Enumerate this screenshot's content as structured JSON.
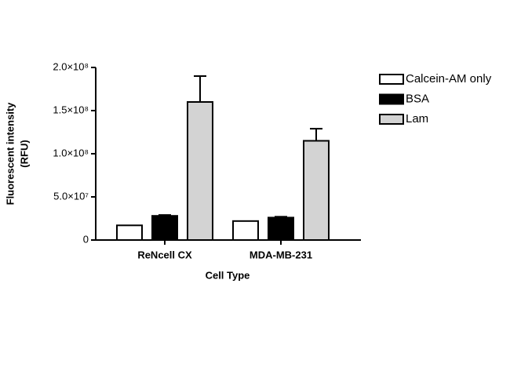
{
  "chart_data": {
    "type": "bar",
    "xlabel": "Cell Type",
    "ylabel": [
      "Fluorescent intensity",
      "(RFU)"
    ],
    "categories": [
      "ReNcell CX",
      "MDA-MB-231"
    ],
    "series": [
      {
        "name": "Calcein-AM only",
        "color": "#ffffff",
        "values": [
          17000000,
          22000000
        ],
        "errors": [
          null,
          null
        ]
      },
      {
        "name": "BSA",
        "color": "#000000",
        "values": [
          28000000,
          26000000
        ],
        "errors": [
          1000000,
          1000000
        ]
      },
      {
        "name": "Lam",
        "color": "#d3d3d3",
        "values": [
          160000000,
          115000000
        ],
        "errors": [
          30000000,
          14000000
        ]
      }
    ],
    "ylim": [
      0,
      200000000
    ],
    "yticks": [
      0,
      {
        "value": 50000000,
        "label": "5.0×10⁷"
      },
      {
        "value": 100000000,
        "label": "1.0×10⁸"
      },
      {
        "value": 150000000,
        "label": "1.5×10⁸"
      },
      {
        "value": 200000000,
        "label": "2.0×10⁸"
      }
    ],
    "legend": "right"
  }
}
